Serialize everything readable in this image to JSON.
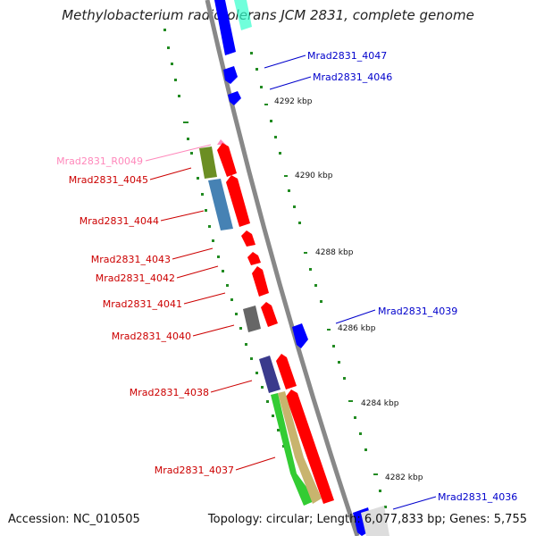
{
  "title": "Methylobacterium radiotolerans JCM 2831, complete genome",
  "footer": {
    "accession": "Accession: NC_010505",
    "summary": "Topology: circular; Length: 6,077,833 bp; Genes: 5,755"
  },
  "colors": {
    "forward_gene": "#0000ff",
    "reverse_gene": "#ff0000",
    "rna_gene": "#ff88bb",
    "backbone": "#888888",
    "ticks": "#228b22"
  },
  "ticks": [
    "4292 kbp",
    "4290 kbp",
    "4288 kbp",
    "4286 kbp",
    "4284 kbp",
    "4282 kbp"
  ],
  "genes": {
    "g4047": "Mrad2831_4047",
    "g4046": "Mrad2831_4046",
    "r0049": "Mrad2831_R0049",
    "g4045": "Mrad2831_4045",
    "g4044": "Mrad2831_4044",
    "g4043": "Mrad2831_4043",
    "g4042": "Mrad2831_4042",
    "g4041": "Mrad2831_4041",
    "g4039": "Mrad2831_4039",
    "g4040": "Mrad2831_4040",
    "g4038": "Mrad2831_4038",
    "g4037": "Mrad2831_4037",
    "g4036": "Mrad2831_4036"
  }
}
